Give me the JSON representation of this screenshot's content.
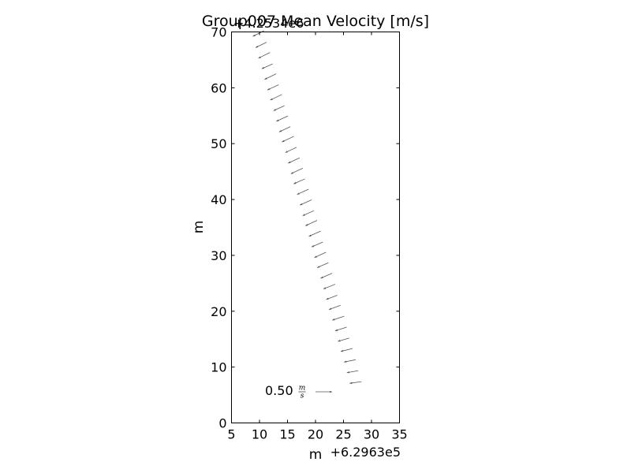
{
  "chart_data": {
    "type": "quiver",
    "title": "Group007 Mean Velocity [m/s]",
    "xlabel": "m",
    "ylabel": "m",
    "x_offset_label": "+6.2963e5",
    "y_offset_label": "+4.2534e6",
    "xlim": [
      5,
      35
    ],
    "ylim": [
      0,
      70
    ],
    "xticks": [
      "5",
      "10",
      "15",
      "20",
      "25",
      "30",
      "35"
    ],
    "yticks": [
      "0",
      "10",
      "20",
      "30",
      "40",
      "50",
      "60",
      "70"
    ],
    "key": {
      "value": "0.50",
      "unit_num": "m",
      "unit_den": "s",
      "u": 0.5
    },
    "color": "#555555",
    "vectors": [
      {
        "x": 8.8,
        "y": 69.2,
        "u": 0.34,
        "v": 0.17
      },
      {
        "x": 9.3,
        "y": 67.2,
        "u": 0.33,
        "v": 0.16
      },
      {
        "x": 9.8,
        "y": 65.3,
        "u": 0.35,
        "v": 0.17
      },
      {
        "x": 10.4,
        "y": 63.4,
        "u": 0.33,
        "v": 0.15
      },
      {
        "x": 10.9,
        "y": 61.5,
        "u": 0.35,
        "v": 0.17
      },
      {
        "x": 11.4,
        "y": 59.6,
        "u": 0.34,
        "v": 0.16
      },
      {
        "x": 11.9,
        "y": 57.8,
        "u": 0.36,
        "v": 0.17
      },
      {
        "x": 12.5,
        "y": 55.9,
        "u": 0.33,
        "v": 0.15
      },
      {
        "x": 13.0,
        "y": 54.0,
        "u": 0.35,
        "v": 0.16
      },
      {
        "x": 13.5,
        "y": 52.1,
        "u": 0.34,
        "v": 0.16
      },
      {
        "x": 14.0,
        "y": 50.3,
        "u": 0.36,
        "v": 0.17
      },
      {
        "x": 14.6,
        "y": 48.4,
        "u": 0.34,
        "v": 0.16
      },
      {
        "x": 15.1,
        "y": 46.5,
        "u": 0.35,
        "v": 0.16
      },
      {
        "x": 15.6,
        "y": 44.6,
        "u": 0.36,
        "v": 0.17
      },
      {
        "x": 16.1,
        "y": 42.8,
        "u": 0.34,
        "v": 0.15
      },
      {
        "x": 16.7,
        "y": 40.9,
        "u": 0.35,
        "v": 0.16
      },
      {
        "x": 17.2,
        "y": 39.0,
        "u": 0.36,
        "v": 0.16
      },
      {
        "x": 17.7,
        "y": 37.1,
        "u": 0.34,
        "v": 0.15
      },
      {
        "x": 18.2,
        "y": 35.3,
        "u": 0.35,
        "v": 0.16
      },
      {
        "x": 18.8,
        "y": 33.4,
        "u": 0.36,
        "v": 0.16
      },
      {
        "x": 19.3,
        "y": 31.5,
        "u": 0.34,
        "v": 0.15
      },
      {
        "x": 19.8,
        "y": 29.6,
        "u": 0.35,
        "v": 0.16
      },
      {
        "x": 20.3,
        "y": 27.8,
        "u": 0.34,
        "v": 0.15
      },
      {
        "x": 20.9,
        "y": 25.9,
        "u": 0.35,
        "v": 0.15
      },
      {
        "x": 21.4,
        "y": 24.0,
        "u": 0.36,
        "v": 0.14
      },
      {
        "x": 21.9,
        "y": 22.1,
        "u": 0.34,
        "v": 0.13
      },
      {
        "x": 22.4,
        "y": 20.3,
        "u": 0.35,
        "v": 0.13
      },
      {
        "x": 23.0,
        "y": 18.4,
        "u": 0.36,
        "v": 0.12
      },
      {
        "x": 23.5,
        "y": 16.5,
        "u": 0.35,
        "v": 0.11
      },
      {
        "x": 24.0,
        "y": 14.6,
        "u": 0.34,
        "v": 0.1
      },
      {
        "x": 24.5,
        "y": 12.8,
        "u": 0.36,
        "v": 0.09
      },
      {
        "x": 25.1,
        "y": 10.9,
        "u": 0.35,
        "v": 0.07
      },
      {
        "x": 25.6,
        "y": 9.0,
        "u": 0.34,
        "v": 0.06
      },
      {
        "x": 26.1,
        "y": 7.1,
        "u": 0.36,
        "v": 0.05
      }
    ]
  }
}
